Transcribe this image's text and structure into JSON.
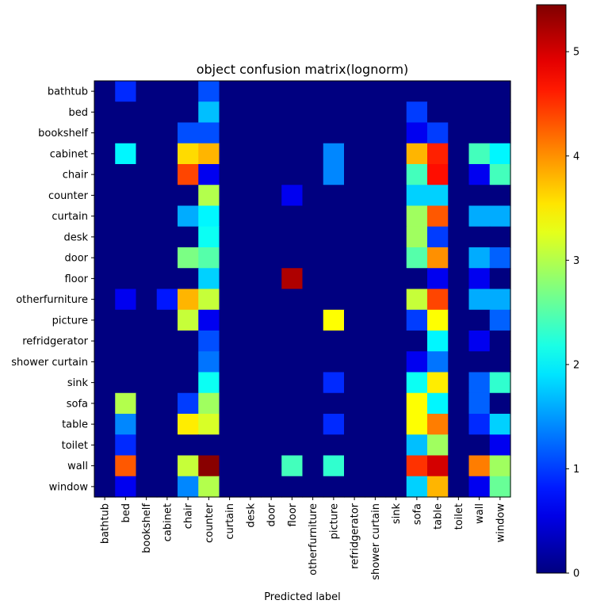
{
  "chart_data": {
    "type": "heatmap",
    "title": "object confusion matrix(lognorm)",
    "xlabel": "Predicted label",
    "ylabel": "",
    "labels": [
      "bathtub",
      "bed",
      "bookshelf",
      "cabinet",
      "chair",
      "counter",
      "curtain",
      "desk",
      "door",
      "floor",
      "otherfurniture",
      "picture",
      "refridgerator",
      "shower curtain",
      "sink",
      "sofa",
      "table",
      "toilet",
      "wall",
      "window"
    ],
    "matrix": [
      [
        0,
        0.9,
        0,
        0,
        0,
        1.1,
        0,
        0,
        0,
        0,
        0,
        0,
        0,
        0,
        0,
        0,
        0,
        0,
        0,
        0
      ],
      [
        0,
        0,
        0,
        0,
        0,
        1.7,
        0,
        0,
        0,
        0,
        0,
        0,
        0,
        0,
        0,
        1.0,
        0,
        0,
        0,
        0
      ],
      [
        0,
        0,
        0,
        0,
        1.1,
        1.1,
        0,
        0,
        0,
        0,
        0,
        0,
        0,
        0,
        0,
        0.6,
        1.0,
        0,
        0,
        0
      ],
      [
        0,
        2.0,
        0,
        0,
        3.6,
        3.8,
        0,
        0,
        0,
        0,
        0,
        1.4,
        0,
        0,
        0,
        3.8,
        4.6,
        0,
        2.4,
        2.0
      ],
      [
        0,
        0,
        0,
        0,
        4.4,
        0.6,
        0,
        0,
        0,
        0,
        0,
        1.4,
        0,
        0,
        0,
        2.4,
        4.7,
        0,
        0.6,
        2.4
      ],
      [
        0,
        0,
        0,
        0,
        0,
        3.0,
        0,
        0,
        0,
        0.6,
        0,
        0,
        0,
        0,
        0,
        1.8,
        1.8,
        0,
        0,
        0
      ],
      [
        0,
        0,
        0,
        0,
        1.6,
        2.0,
        0,
        0,
        0,
        0,
        0,
        0,
        0,
        0,
        0,
        2.9,
        4.3,
        0,
        1.6,
        1.6
      ],
      [
        0,
        0,
        0,
        0,
        0,
        2.1,
        0,
        0,
        0,
        0,
        0,
        0,
        0,
        0,
        0,
        2.9,
        1.0,
        0,
        0,
        0
      ],
      [
        0,
        0,
        0,
        0,
        2.7,
        2.5,
        0,
        0,
        0,
        0,
        0,
        0,
        0,
        0,
        0,
        2.5,
        4.0,
        0,
        1.6,
        1.2
      ],
      [
        0,
        0,
        0,
        0,
        0,
        1.8,
        0,
        0,
        0,
        5.2,
        0,
        0,
        0,
        0,
        0,
        0,
        0.6,
        0,
        0.6,
        0
      ],
      [
        0,
        0.6,
        0,
        0.8,
        3.8,
        3.1,
        0,
        0,
        0,
        0,
        0,
        0,
        0,
        0,
        0,
        3.1,
        4.4,
        0,
        1.6,
        1.6
      ],
      [
        0,
        0,
        0,
        0,
        3.1,
        0.6,
        0,
        0,
        0,
        0,
        0,
        3.4,
        0,
        0,
        0,
        1.0,
        3.4,
        0,
        0,
        1.2
      ],
      [
        0,
        0,
        0,
        0,
        0,
        1.1,
        0,
        0,
        0,
        0,
        0,
        0,
        0,
        0,
        0,
        0,
        2.0,
        0,
        0.6,
        0
      ],
      [
        0,
        0,
        0,
        0,
        0,
        1.3,
        0,
        0,
        0,
        0,
        0,
        0,
        0,
        0,
        0,
        0.6,
        1.3,
        0,
        0,
        0
      ],
      [
        0,
        0,
        0,
        0,
        0,
        2.1,
        0,
        0,
        0,
        0,
        0,
        0.9,
        0,
        0,
        0,
        2.1,
        3.5,
        0,
        1.2,
        2.3
      ],
      [
        0,
        3.0,
        0,
        0,
        1.0,
        2.9,
        0,
        0,
        0,
        0,
        0,
        0,
        0,
        0,
        0,
        3.4,
        2.0,
        0,
        1.2,
        0
      ],
      [
        0,
        1.4,
        0,
        0,
        3.5,
        3.2,
        0,
        0,
        0,
        0,
        0,
        0.9,
        0,
        0,
        0,
        3.4,
        4.1,
        0,
        0.9,
        1.8
      ],
      [
        0,
        0.9,
        0,
        0,
        0,
        0,
        0,
        0,
        0,
        0,
        0,
        0,
        0,
        0,
        0,
        1.7,
        2.9,
        0,
        0,
        0.6
      ],
      [
        0,
        4.3,
        0,
        0,
        3.1,
        5.4,
        0,
        0,
        0,
        2.4,
        0,
        2.3,
        0,
        0,
        0,
        4.5,
        5.0,
        0,
        4.1,
        2.9
      ],
      [
        0,
        0.6,
        0,
        0,
        1.4,
        3.0,
        0,
        0,
        0,
        0,
        0,
        0,
        0,
        0,
        0,
        1.8,
        3.8,
        0,
        0.6,
        2.6
      ]
    ],
    "colorbar": {
      "colormap": "jet",
      "min": 0,
      "max": 5.45,
      "ticks": [
        0,
        1,
        2,
        3,
        4,
        5
      ]
    }
  }
}
